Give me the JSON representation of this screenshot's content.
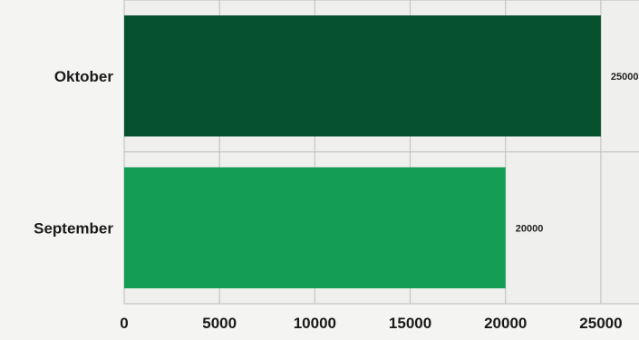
{
  "chart_data": {
    "type": "bar",
    "orientation": "horizontal",
    "categories": [
      "Oktober",
      "September"
    ],
    "values": [
      25000,
      20000
    ],
    "data_labels": [
      "25000",
      "20000"
    ],
    "xlim": [
      0,
      27000
    ],
    "xticks": [
      "0",
      "5000",
      "10000",
      "15000",
      "20000",
      "25000"
    ],
    "xtick_values": [
      0,
      5000,
      10000,
      15000,
      20000,
      25000
    ],
    "title": "",
    "xlabel": "",
    "ylabel": "",
    "grid": true,
    "colors": [
      "#07522e",
      "#139e53"
    ],
    "plot_background": "#f1f1f0",
    "grid_color": "#bdbdbd"
  }
}
